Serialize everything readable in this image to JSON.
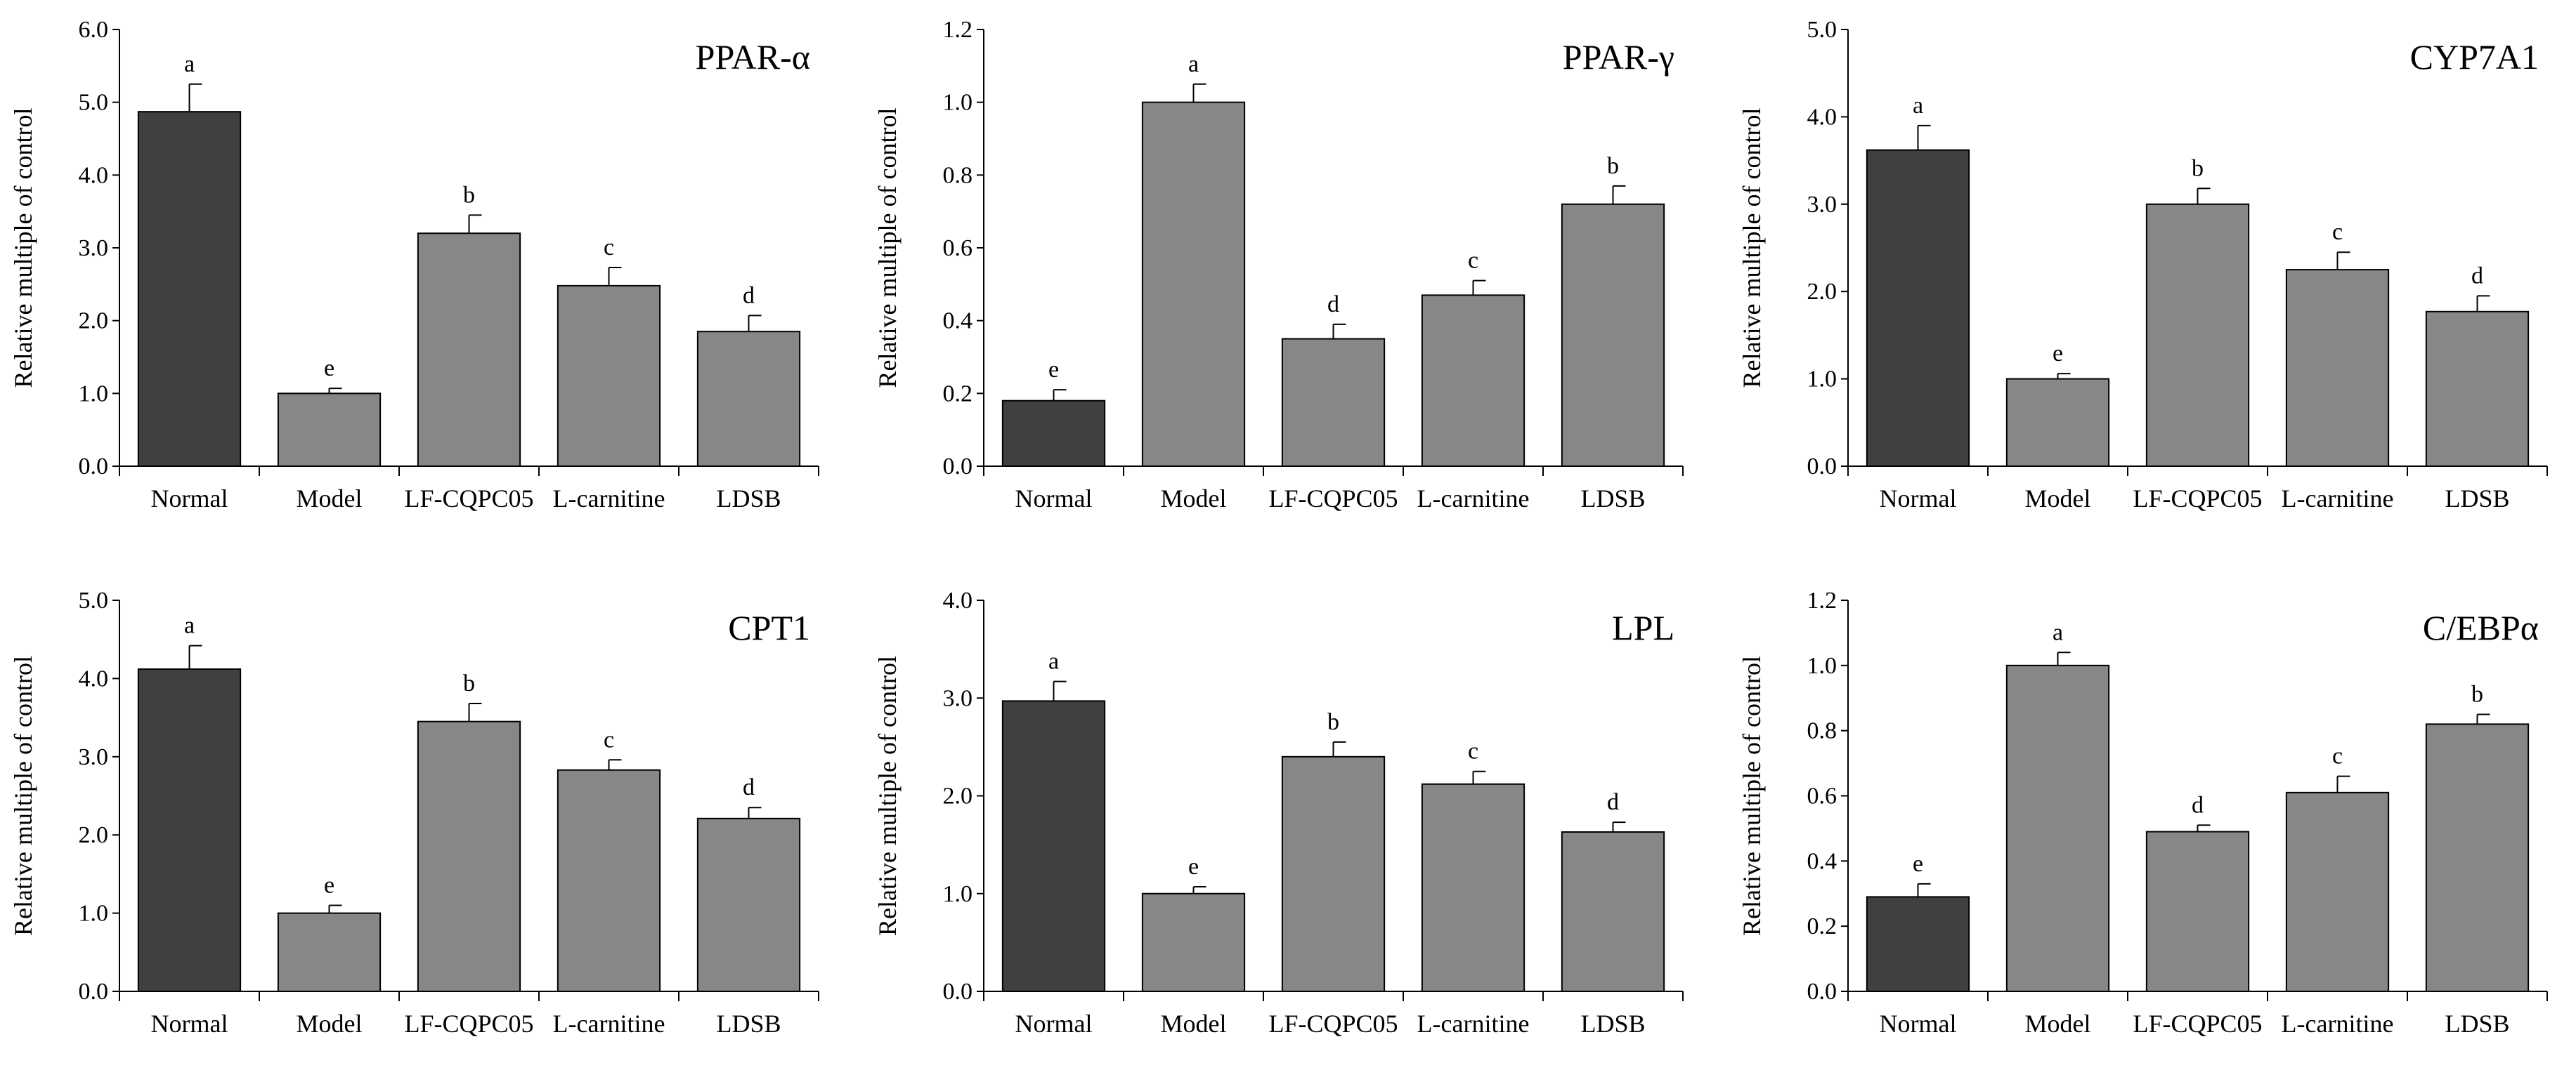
{
  "figure": {
    "colors": {
      "normal_bar": "#404040",
      "group_bar": "#878787",
      "axis": "#000000",
      "error_bar": "#000000"
    }
  },
  "chart_data": [
    {
      "type": "bar",
      "title": "PPAR-α",
      "ylabel": "Relative multiple of control",
      "ylim": [
        0,
        6.0
      ],
      "yticks": [
        0.0,
        1.0,
        2.0,
        3.0,
        4.0,
        5.0,
        6.0
      ],
      "ytick_labels": [
        "0.0",
        "1.0",
        "2.0",
        "3.0",
        "4.0",
        "5.0",
        "6.0"
      ],
      "categories": [
        "Normal",
        "Model",
        "LF-CQPC05",
        "L-carnitine",
        "LDSB"
      ],
      "values": [
        4.87,
        1.0,
        3.2,
        2.48,
        1.85
      ],
      "errors": [
        0.38,
        0.07,
        0.25,
        0.25,
        0.22
      ],
      "significance": [
        "a",
        "e",
        "b",
        "c",
        "d"
      ]
    },
    {
      "type": "bar",
      "title": "PPAR-γ",
      "ylabel": "Relative multiple of control",
      "ylim": [
        0,
        1.2
      ],
      "yticks": [
        0.0,
        0.2,
        0.4,
        0.6,
        0.8,
        1.0,
        1.2
      ],
      "ytick_labels": [
        "0.0",
        "0.2",
        "0.4",
        "0.6",
        "0.8",
        "1.0",
        "1.2"
      ],
      "categories": [
        "Normal",
        "Model",
        "LF-CQPC05",
        "L-carnitine",
        "LDSB"
      ],
      "values": [
        0.18,
        1.0,
        0.35,
        0.47,
        0.72
      ],
      "errors": [
        0.03,
        0.05,
        0.04,
        0.04,
        0.05
      ],
      "significance": [
        "e",
        "a",
        "d",
        "c",
        "b"
      ]
    },
    {
      "type": "bar",
      "title": "CYP7A1",
      "ylabel": "Relative multiple of control",
      "ylim": [
        0,
        5.0
      ],
      "yticks": [
        0.0,
        1.0,
        2.0,
        3.0,
        4.0,
        5.0
      ],
      "ytick_labels": [
        "0.0",
        "1.0",
        "2.0",
        "3.0",
        "4.0",
        "5.0"
      ],
      "categories": [
        "Normal",
        "Model",
        "LF-CQPC05",
        "L-carnitine",
        "LDSB"
      ],
      "values": [
        3.62,
        1.0,
        3.0,
        2.25,
        1.77
      ],
      "errors": [
        0.28,
        0.06,
        0.18,
        0.2,
        0.18
      ],
      "significance": [
        "a",
        "e",
        "b",
        "c",
        "d"
      ]
    },
    {
      "type": "bar",
      "title": "CPT1",
      "ylabel": "Relative multiple of control",
      "ylim": [
        0,
        5.0
      ],
      "yticks": [
        0.0,
        1.0,
        2.0,
        3.0,
        4.0,
        5.0
      ],
      "ytick_labels": [
        "0.0",
        "1.0",
        "2.0",
        "3.0",
        "4.0",
        "5.0"
      ],
      "categories": [
        "Normal",
        "Model",
        "LF-CQPC05",
        "L-carnitine",
        "LDSB"
      ],
      "values": [
        4.12,
        1.0,
        3.45,
        2.83,
        2.21
      ],
      "errors": [
        0.3,
        0.1,
        0.23,
        0.13,
        0.14
      ],
      "significance": [
        "a",
        "e",
        "b",
        "c",
        "d"
      ]
    },
    {
      "type": "bar",
      "title": "LPL",
      "ylabel": "Relative multiple of control",
      "ylim": [
        0,
        4.0
      ],
      "yticks": [
        0.0,
        1.0,
        2.0,
        3.0,
        4.0
      ],
      "ytick_labels": [
        "0.0",
        "1.0",
        "2.0",
        "3.0",
        "4.0"
      ],
      "categories": [
        "Normal",
        "Model",
        "LF-CQPC05",
        "L-carnitine",
        "LDSB"
      ],
      "values": [
        2.97,
        1.0,
        2.4,
        2.12,
        1.63
      ],
      "errors": [
        0.2,
        0.07,
        0.15,
        0.13,
        0.1
      ],
      "significance": [
        "a",
        "e",
        "b",
        "c",
        "d"
      ]
    },
    {
      "type": "bar",
      "title": "C/EBPα",
      "ylabel": "Relative multiple of control",
      "ylim": [
        0,
        1.2
      ],
      "yticks": [
        0.0,
        0.2,
        0.4,
        0.6,
        0.8,
        1.0,
        1.2
      ],
      "ytick_labels": [
        "0.0",
        "0.2",
        "0.4",
        "0.6",
        "0.8",
        "1.0",
        "1.2"
      ],
      "categories": [
        "Normal",
        "Model",
        "LF-CQPC05",
        "L-carnitine",
        "LDSB"
      ],
      "values": [
        0.29,
        1.0,
        0.49,
        0.61,
        0.82
      ],
      "errors": [
        0.04,
        0.04,
        0.02,
        0.05,
        0.03
      ],
      "significance": [
        "e",
        "a",
        "d",
        "c",
        "b"
      ]
    }
  ]
}
